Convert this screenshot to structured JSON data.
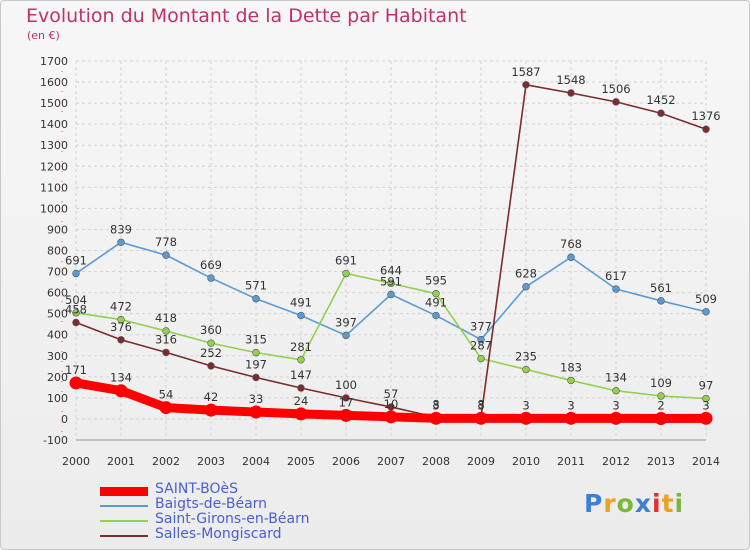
{
  "chart_data": {
    "type": "line",
    "title": "Evolution du Montant de la Dette par Habitant",
    "subtitle": "(en €)",
    "x": [
      "2000",
      "2001",
      "2002",
      "2003",
      "2004",
      "2005",
      "2006",
      "2007",
      "2008",
      "2009",
      "2010",
      "2011",
      "2012",
      "2013",
      "2014"
    ],
    "ylim": [
      -100,
      1700
    ],
    "yticks": [
      "-100",
      "0",
      "100",
      "200",
      "300",
      "400",
      "500",
      "600",
      "700",
      "800",
      "900",
      "1000",
      "1100",
      "1200",
      "1300",
      "1400",
      "1500",
      "1600",
      "1700"
    ],
    "legend_placement": "bottom-left",
    "series": [
      {
        "name": "SAINT-BOèS",
        "color": "#ff0000",
        "values": [
          171,
          134,
          54,
          42,
          33,
          24,
          17,
          10,
          3,
          3,
          3,
          3,
          3,
          2,
          3
        ],
        "labels": [
          "171",
          "134",
          "54",
          "42",
          "33",
          "24",
          "17",
          "10",
          "3",
          "3",
          "3",
          "3",
          "3",
          "2",
          "3"
        ]
      },
      {
        "name": "Baigts-de-Béarn",
        "color": "#5b9bd5",
        "values": [
          691,
          839,
          778,
          669,
          571,
          491,
          397,
          591,
          491,
          377,
          628,
          768,
          617,
          561,
          509
        ],
        "labels": [
          "691",
          "839",
          "778",
          "669",
          "571",
          "491",
          "397",
          "591",
          "491",
          "377",
          "628",
          "768",
          "617",
          "561",
          "509"
        ]
      },
      {
        "name": "Saint-Girons-en-Béarn",
        "color": "#92d050",
        "values": [
          504,
          472,
          418,
          360,
          315,
          281,
          691,
          644,
          595,
          287,
          235,
          183,
          134,
          109,
          97
        ],
        "labels": [
          "504",
          "472",
          "418",
          "360",
          "315",
          "281",
          "691",
          "644",
          "595",
          "287",
          "235",
          "183",
          "134",
          "109",
          "97"
        ]
      },
      {
        "name": "Salles-Mongiscard",
        "color": "#7b2c2c",
        "values": [
          458,
          376,
          316,
          252,
          197,
          147,
          100,
          57,
          8,
          8,
          1587,
          1548,
          1506,
          1452,
          1376
        ],
        "labels": [
          "458",
          "376",
          "316",
          "252",
          "197",
          "147",
          "100",
          "57",
          "8",
          "8",
          "1587",
          "1548",
          "1506",
          "1452",
          "1376"
        ]
      }
    ]
  },
  "brand": {
    "logo_text": "Proxiti",
    "logo_colors": [
      "#3d7fd4",
      "#f0a020",
      "#7ab83a",
      "#3d7fd4",
      "#e03030",
      "#f0a020",
      "#7ab83a"
    ]
  }
}
